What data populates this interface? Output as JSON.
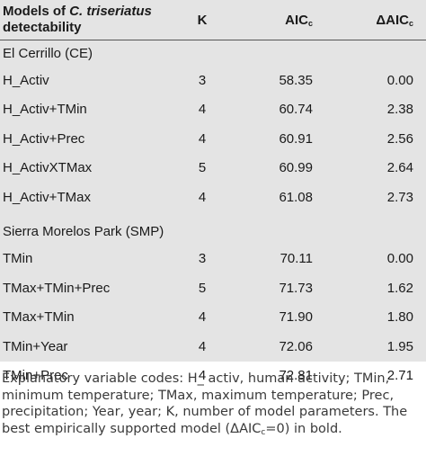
{
  "table": {
    "headers": {
      "model_prefix": "Models of ",
      "model_species": "C. triseriatus",
      "model_suffix": "detectability",
      "k": "K",
      "aic": "AIC",
      "aic_sub": "c",
      "daic": "ΔAIC",
      "daic_sub": "c"
    },
    "sections": [
      {
        "title": "El Cerrillo (CE)",
        "rows": [
          {
            "model": "H_Activ",
            "k": "3",
            "aic": "58.35",
            "daic": "0.00"
          },
          {
            "model": "H_Activ+TMin",
            "k": "4",
            "aic": "60.74",
            "daic": "2.38"
          },
          {
            "model": "H_Activ+Prec",
            "k": "4",
            "aic": "60.91",
            "daic": "2.56"
          },
          {
            "model": "H_ActivXTMax",
            "k": "5",
            "aic": "60.99",
            "daic": "2.64"
          },
          {
            "model": "H_Activ+TMax",
            "k": "4",
            "aic": "61.08",
            "daic": "2.73"
          }
        ]
      },
      {
        "title": "Sierra Morelos Park (SMP)",
        "rows": [
          {
            "model": "TMin",
            "k": "3",
            "aic": "70.11",
            "daic": "0.00"
          },
          {
            "model": "TMax+TMin+Prec",
            "k": "5",
            "aic": "71.73",
            "daic": "1.62"
          },
          {
            "model": "TMax+TMin",
            "k": "4",
            "aic": "71.90",
            "daic": "1.80"
          },
          {
            "model": "TMin+Year",
            "k": "4",
            "aic": "72.06",
            "daic": "1.95"
          },
          {
            "model": "TMin+Prec",
            "k": "4",
            "aic": "72.81",
            "daic": "2.71"
          }
        ]
      }
    ]
  },
  "footnote": {
    "text": "Explanatory variable codes: H_ activ, human activity; TMin,\nminimum temperature; TMax, maximum temperature; Prec,\nprecipitation; Year, year; K, number of model parameters. The\nbest empirically supported model (ΔAIC",
    "sub": "c",
    "tail": "=0) in bold."
  }
}
